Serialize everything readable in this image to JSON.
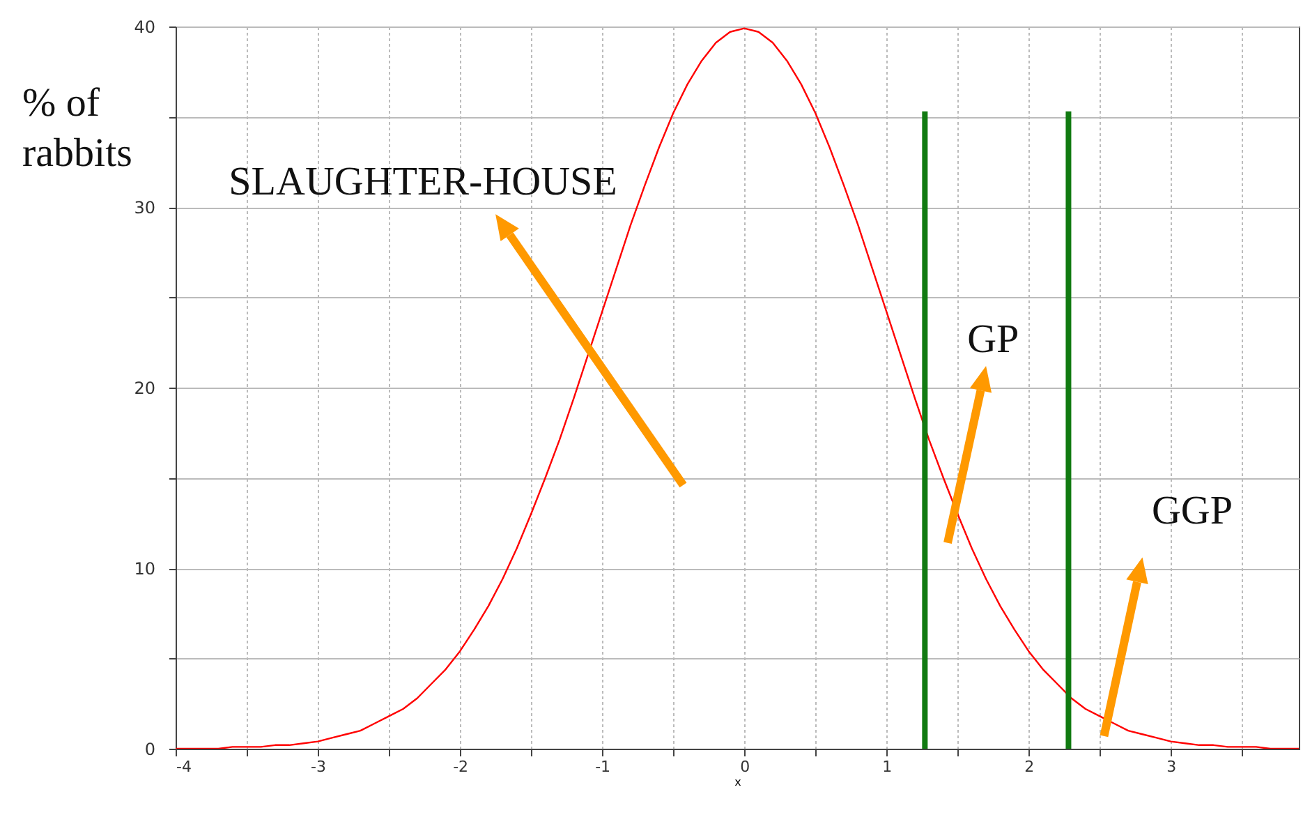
{
  "chart_data": {
    "type": "line",
    "ylabel": "% of rabbits",
    "xlabel": "x",
    "xlim": [
      -4,
      3.9
    ],
    "ylim": [
      0,
      40
    ],
    "xticks": [
      -4,
      {
        "value": -3.5,
        "label": null
      },
      -3,
      {
        "value": -2.5,
        "label": null
      },
      -2,
      {
        "value": -1.5,
        "label": null
      },
      -1,
      {
        "value": -0.5,
        "label": null
      },
      0,
      {
        "value": 0.5,
        "label": null
      },
      1,
      {
        "value": 1.5,
        "label": null
      },
      2,
      {
        "value": 2.5,
        "label": null
      },
      3,
      {
        "value": 3.5,
        "label": null
      }
    ],
    "yticks": [
      0,
      {
        "value": 5,
        "label": null
      },
      10,
      {
        "value": 15,
        "label": null
      },
      20,
      {
        "value": 25,
        "label": null
      },
      30,
      {
        "value": 35,
        "label": null
      },
      40
    ],
    "grid": true,
    "annotations": [
      "SLAUGHTER-HOUSE",
      "GP",
      "GGP"
    ],
    "series": [
      {
        "color": "#ff0000",
        "x": [
          -4,
          -3.9,
          -3.8,
          -3.7,
          -3.6,
          -3.5,
          -3.4,
          -3.3,
          -3.2,
          -3.1,
          -3,
          -2.9,
          -2.8,
          -2.7,
          -2.6,
          -2.5,
          -2.4,
          -2.3,
          -2.2,
          -2.1,
          -2,
          -1.9,
          -1.8,
          -1.7,
          -1.6,
          -1.5,
          -1.4,
          -1.3,
          -1.2,
          -1.1,
          -1,
          -0.9,
          -0.8,
          -0.7,
          -0.6,
          -0.5,
          -0.4,
          -0.3,
          -0.2,
          -0.1,
          0,
          0.1,
          0.2,
          0.3,
          0.4,
          0.5,
          0.6,
          0.7,
          0.8,
          0.9,
          1,
          1.1,
          1.2,
          1.3,
          1.4,
          1.5,
          1.6,
          1.7,
          1.8,
          1.9,
          2,
          2.1,
          2.2,
          2.3,
          2.4,
          2.5,
          2.6,
          2.7,
          2.8,
          2.9,
          3,
          3.1,
          3.2,
          3.3,
          3.4,
          3.5,
          3.6,
          3.7,
          3.8,
          3.9
        ],
        "values": [
          0.0,
          0.0,
          0.0,
          0.0,
          0.1,
          0.1,
          0.1,
          0.2,
          0.2,
          0.3,
          0.4,
          0.6,
          0.8,
          1.0,
          1.4,
          1.8,
          2.2,
          2.8,
          3.6,
          4.4,
          5.4,
          6.6,
          7.9,
          9.4,
          11.1,
          13.0,
          15.0,
          17.1,
          19.4,
          21.8,
          24.2,
          26.6,
          29.0,
          31.2,
          33.3,
          35.2,
          36.8,
          38.1,
          39.1,
          39.7,
          39.9,
          39.7,
          39.1,
          38.1,
          36.8,
          35.2,
          33.3,
          31.2,
          29.0,
          26.6,
          24.2,
          21.8,
          19.4,
          17.1,
          15.0,
          13.0,
          11.1,
          9.4,
          7.9,
          6.6,
          5.4,
          4.4,
          3.6,
          2.8,
          2.2,
          1.8,
          1.4,
          1.0,
          0.8,
          0.6,
          0.4,
          0.3,
          0.2,
          0.2,
          0.1,
          0.1,
          0.1,
          0.0,
          0.0,
          0.0
        ]
      },
      {
        "color": "#117a11",
        "x": [
          1.27,
          1.27
        ],
        "values": [
          0,
          35.3
        ]
      },
      {
        "color": "#117a11",
        "x": [
          2.28,
          2.28
        ],
        "values": [
          0,
          35.3
        ]
      }
    ]
  }
}
